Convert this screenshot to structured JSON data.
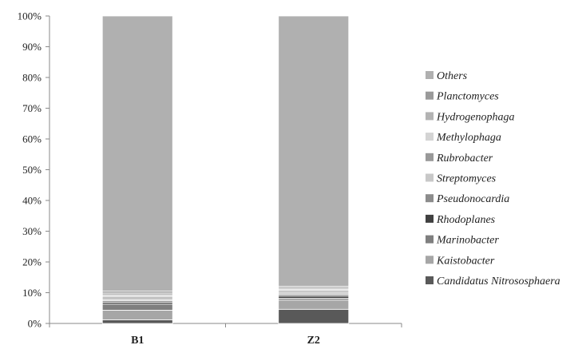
{
  "chart_data": {
    "type": "bar",
    "stacked": true,
    "percent": true,
    "categories": [
      "B1",
      "Z2"
    ],
    "ylim": [
      0,
      100
    ],
    "yticks": [
      "0%",
      "10%",
      "20%",
      "30%",
      "40%",
      "50%",
      "60%",
      "70%",
      "80%",
      "90%",
      "100%"
    ],
    "legend_position": "right",
    "grid": false,
    "series": [
      {
        "name": "Candidatus Nitrososphaera",
        "color": "#595959",
        "values": [
          1.2,
          4.6
        ]
      },
      {
        "name": "Kaistobacter",
        "color": "#a6a6a6",
        "values": [
          3.1,
          3.0
        ]
      },
      {
        "name": "Marinobacter",
        "color": "#7f7f7f",
        "values": [
          2.0,
          0.6
        ]
      },
      {
        "name": "Rhodoplanes",
        "color": "#404040",
        "values": [
          0.6,
          0.7
        ]
      },
      {
        "name": "Pseudonocardia",
        "color": "#8c8c8c",
        "values": [
          0.5,
          0.6
        ]
      },
      {
        "name": "Streptomyces",
        "color": "#c8c8c8",
        "values": [
          0.6,
          0.6
        ]
      },
      {
        "name": "Rubrobacter",
        "color": "#999999",
        "values": [
          0.6,
          0.5
        ]
      },
      {
        "name": "Methylophaga",
        "color": "#d4d4d4",
        "values": [
          0.6,
          0.5
        ]
      },
      {
        "name": "Hydrogenophaga",
        "color": "#b3b3b3",
        "values": [
          0.7,
          0.5
        ]
      },
      {
        "name": "Planctomyces",
        "color": "#9a9a9a",
        "values": [
          0.6,
          0.5
        ]
      },
      {
        "name": "Others",
        "color": "#b0b0b0",
        "values": [
          89.5,
          87.9
        ]
      }
    ]
  }
}
